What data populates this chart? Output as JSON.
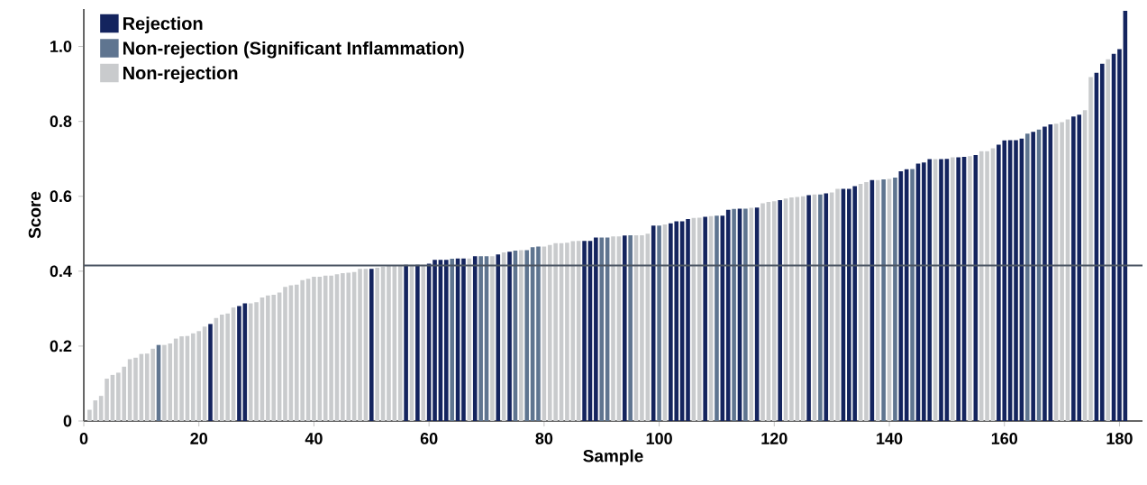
{
  "chart_data": {
    "type": "bar",
    "xlabel": "Sample",
    "ylabel": "Score",
    "xlim": [
      0,
      184
    ],
    "xticks": [
      0,
      20,
      40,
      60,
      80,
      100,
      120,
      140,
      160,
      180
    ],
    "ylim": [
      0,
      1.1
    ],
    "yticks": [
      0,
      0.2,
      0.4,
      0.6,
      0.8,
      {
        "value": 1,
        "label": "1.0"
      }
    ],
    "legend": "top left",
    "ref_lines": [
      {
        "axis": "y",
        "value": 0.415,
        "color": "#4b5563"
      }
    ],
    "series": [
      {
        "name": "Rejection",
        "color": "#14245e",
        "x": [
          22,
          27,
          28,
          50,
          56,
          58,
          60,
          61,
          62,
          63,
          65,
          66,
          68,
          72,
          74,
          87,
          88,
          89,
          94,
          99,
          102,
          103,
          104,
          105,
          108,
          111,
          112,
          114,
          117,
          121,
          126,
          129,
          132,
          133,
          134,
          137,
          142,
          143,
          145,
          146,
          147,
          149,
          150,
          152,
          153,
          155,
          159,
          160,
          161,
          162,
          163,
          165,
          167,
          168,
          172,
          173,
          176,
          177,
          179,
          180,
          181
        ],
        "values": [
          0.259,
          0.307,
          0.314,
          0.406,
          0.417,
          0.417,
          0.42,
          0.43,
          0.43,
          0.43,
          0.434,
          0.434,
          0.44,
          0.445,
          0.452,
          0.481,
          0.481,
          0.49,
          0.495,
          0.522,
          0.528,
          0.533,
          0.533,
          0.539,
          0.545,
          0.548,
          0.564,
          0.567,
          0.57,
          0.59,
          0.603,
          0.608,
          0.62,
          0.62,
          0.627,
          0.643,
          0.667,
          0.672,
          0.687,
          0.69,
          0.699,
          0.699,
          0.7,
          0.704,
          0.705,
          0.71,
          0.738,
          0.749,
          0.75,
          0.75,
          0.754,
          0.772,
          0.786,
          0.792,
          0.813,
          0.818,
          0.93,
          0.954,
          0.98,
          0.993,
          1.095
        ]
      },
      {
        "name": "Non-rejection (Significant Inflammation)",
        "color": "#5f7590",
        "x": [
          13,
          64,
          69,
          70,
          75,
          77,
          78,
          79,
          90,
          91,
          95,
          100,
          110,
          113,
          115,
          128,
          139,
          141,
          144,
          164,
          166
        ],
        "values": [
          0.203,
          0.433,
          0.44,
          0.44,
          0.455,
          0.456,
          0.464,
          0.466,
          0.49,
          0.49,
          0.496,
          0.522,
          0.548,
          0.566,
          0.567,
          0.605,
          0.645,
          0.65,
          0.673,
          0.767,
          0.778
        ]
      },
      {
        "name": "Non-rejection",
        "color": "#c9cbcd",
        "x": [
          1,
          2,
          3,
          4,
          5,
          6,
          7,
          8,
          9,
          10,
          11,
          12,
          14,
          15,
          16,
          17,
          18,
          19,
          20,
          21,
          23,
          24,
          25,
          26,
          29,
          30,
          31,
          32,
          33,
          34,
          35,
          36,
          37,
          38,
          39,
          40,
          41,
          42,
          43,
          44,
          45,
          46,
          47,
          48,
          49,
          51,
          52,
          53,
          54,
          55,
          57,
          59,
          67,
          71,
          73,
          76,
          80,
          81,
          82,
          83,
          84,
          85,
          86,
          92,
          93,
          96,
          97,
          98,
          101,
          106,
          107,
          109,
          116,
          118,
          119,
          120,
          122,
          123,
          124,
          125,
          127,
          130,
          131,
          135,
          136,
          138,
          140,
          148,
          151,
          154,
          156,
          157,
          158,
          169,
          170,
          171,
          174,
          175,
          178
        ],
        "values": [
          0.03,
          0.055,
          0.067,
          0.113,
          0.123,
          0.129,
          0.145,
          0.165,
          0.169,
          0.179,
          0.18,
          0.193,
          0.203,
          0.207,
          0.22,
          0.226,
          0.227,
          0.234,
          0.24,
          0.252,
          0.275,
          0.284,
          0.287,
          0.303,
          0.314,
          0.317,
          0.33,
          0.335,
          0.337,
          0.343,
          0.358,
          0.362,
          0.364,
          0.376,
          0.38,
          0.385,
          0.385,
          0.388,
          0.388,
          0.392,
          0.395,
          0.396,
          0.398,
          0.406,
          0.406,
          0.409,
          0.412,
          0.414,
          0.415,
          0.415,
          0.417,
          0.417,
          0.434,
          0.44,
          0.45,
          0.456,
          0.466,
          0.47,
          0.475,
          0.475,
          0.476,
          0.48,
          0.481,
          0.493,
          0.493,
          0.496,
          0.496,
          0.5,
          0.525,
          0.542,
          0.543,
          0.547,
          0.569,
          0.581,
          0.585,
          0.587,
          0.594,
          0.597,
          0.598,
          0.6,
          0.605,
          0.61,
          0.62,
          0.633,
          0.638,
          0.643,
          0.646,
          0.699,
          0.704,
          0.707,
          0.72,
          0.72,
          0.728,
          0.794,
          0.798,
          0.805,
          0.83,
          0.918,
          0.966
        ]
      }
    ]
  }
}
